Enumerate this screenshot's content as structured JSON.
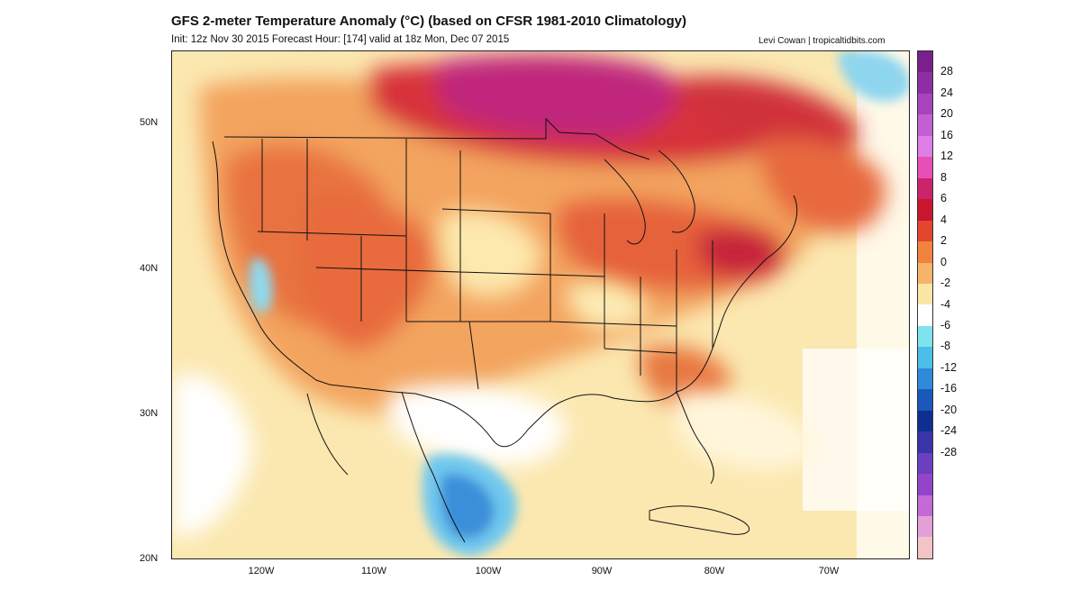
{
  "title": "GFS 2-meter Temperature Anomaly (°C) (based on CFSR 1981-2010 Climatology)",
  "subtitle": "Init: 12z Nov 30 2015   Forecast Hour: [174]   valid at 18z Mon, Dec 07 2015",
  "credit": "Levi Cowan | tropicaltidbits.com",
  "lat_labels": [
    "50N",
    "40N",
    "30N",
    "20N"
  ],
  "lon_labels": [
    "120W",
    "110W",
    "100W",
    "90W",
    "80W",
    "70W"
  ],
  "colorbar": {
    "labels": [
      "28",
      "24",
      "20",
      "16",
      "12",
      "8",
      "6",
      "4",
      "2",
      "0",
      "-2",
      "-4",
      "-6",
      "-8",
      "-12",
      "-16",
      "-20",
      "-24",
      "-28"
    ],
    "colors": [
      "#7a1f8c",
      "#8e2ea3",
      "#a744bd",
      "#c25fd3",
      "#dc7ee6",
      "#e64fb6",
      "#c9246c",
      "#c8162e",
      "#e2462c",
      "#f0843f",
      "#f7b36a",
      "#fce6a6",
      "#ffffff",
      "#7fe3ee",
      "#4dbde9",
      "#2f8ad9",
      "#1a58bb",
      "#0e2f8f",
      "#3a34a8",
      "#6a3fc0",
      "#9444c9",
      "#c36ad5",
      "#e3a0d8",
      "#f3c4c6"
    ]
  }
}
